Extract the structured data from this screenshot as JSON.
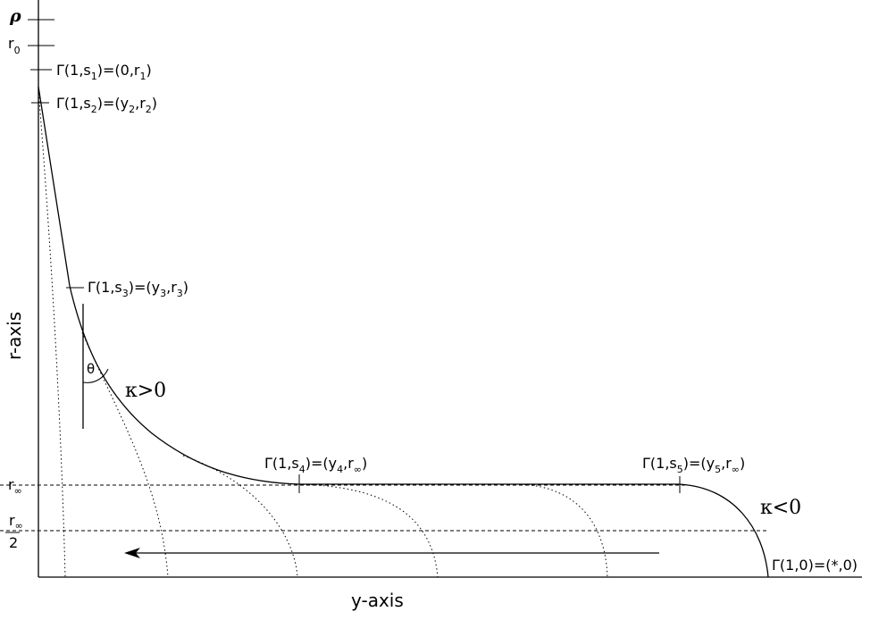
{
  "labels": {
    "rho": "ρ",
    "r0_main": "r",
    "r0_sub": "0",
    "rinf_main": "r",
    "rinf_sub": "∞",
    "rhalf_main": "r",
    "rhalf_sub": "∞",
    "rhalf_den": "2",
    "g1": {
      "pre": "Γ(1,s",
      "s": "1",
      "mid": ")=(0,r",
      "r": "1",
      "post": ")"
    },
    "g2": {
      "pre": "Γ(1,s",
      "s": "2",
      "mid": ")=(y",
      "y": "2",
      "mid2": ",r",
      "r": "2",
      "post": ")"
    },
    "g3": {
      "pre": "Γ(1,s",
      "s": "3",
      "mid": ")=(y",
      "y": "3",
      "mid2": ",r",
      "r": "3",
      "post": ")"
    },
    "g4": {
      "pre": "Γ(1,s",
      "s": "4",
      "mid": ")=(y",
      "y": "4",
      "mid2": ",r",
      "r": "∞",
      "post": ")"
    },
    "g5": {
      "pre": "Γ(1,s",
      "s": "5",
      "mid": ")=(y",
      "y": "5",
      "mid2": ",r",
      "r": "∞",
      "post": ")"
    },
    "g0": "Γ(1,0)=(*,0)",
    "theta": "θ",
    "kappa_pos": "κ>0",
    "kappa_neg": "κ<0",
    "x_axis": "y-axis",
    "y_axis": "r-axis"
  },
  "colors": {
    "ink": "#000000",
    "background": "#ffffff"
  }
}
